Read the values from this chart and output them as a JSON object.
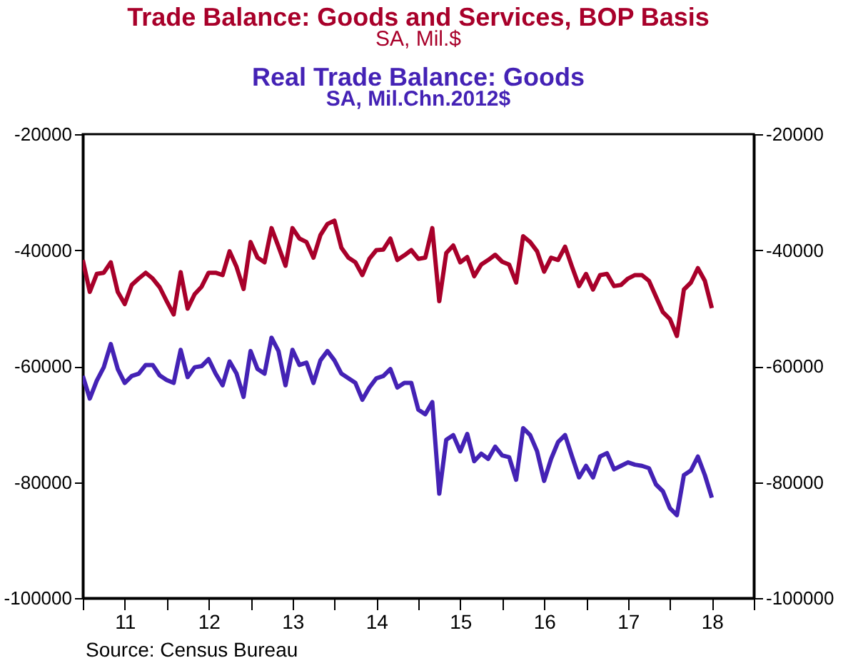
{
  "chart_data": {
    "type": "line",
    "x": [
      "2011-01",
      "2011-02",
      "2011-03",
      "2011-04",
      "2011-05",
      "2011-06",
      "2011-07",
      "2011-08",
      "2011-09",
      "2011-10",
      "2011-11",
      "2011-12",
      "2012-01",
      "2012-02",
      "2012-03",
      "2012-04",
      "2012-05",
      "2012-06",
      "2012-07",
      "2012-08",
      "2012-09",
      "2012-10",
      "2012-11",
      "2012-12",
      "2013-01",
      "2013-02",
      "2013-03",
      "2013-04",
      "2013-05",
      "2013-06",
      "2013-07",
      "2013-08",
      "2013-09",
      "2013-10",
      "2013-11",
      "2013-12",
      "2014-01",
      "2014-02",
      "2014-03",
      "2014-04",
      "2014-05",
      "2014-06",
      "2014-07",
      "2014-08",
      "2014-09",
      "2014-10",
      "2014-11",
      "2014-12",
      "2015-01",
      "2015-02",
      "2015-03",
      "2015-04",
      "2015-05",
      "2015-06",
      "2015-07",
      "2015-08",
      "2015-09",
      "2015-10",
      "2015-11",
      "2015-12",
      "2016-01",
      "2016-02",
      "2016-03",
      "2016-04",
      "2016-05",
      "2016-06",
      "2016-07",
      "2016-08",
      "2016-09",
      "2016-10",
      "2016-11",
      "2016-12",
      "2017-01",
      "2017-02",
      "2017-03",
      "2017-04",
      "2017-05",
      "2017-06",
      "2017-07",
      "2017-08",
      "2017-09",
      "2017-10",
      "2017-11",
      "2017-12",
      "2018-01",
      "2018-02",
      "2018-03",
      "2018-04",
      "2018-05",
      "2018-06",
      "2018-07"
    ],
    "series": [
      {
        "name": "Trade Balance:  Goods and Services, BOP Basis",
        "color": "#a8002a",
        "values": [
          -41700,
          -47200,
          -44100,
          -43900,
          -42100,
          -47200,
          -49300,
          -46000,
          -44900,
          -43900,
          -44900,
          -46400,
          -48800,
          -51100,
          -43800,
          -50100,
          -47600,
          -46300,
          -43900,
          -43900,
          -44300,
          -40200,
          -42900,
          -46700,
          -38600,
          -41300,
          -42100,
          -36200,
          -39400,
          -42700,
          -36200,
          -38000,
          -38600,
          -41300,
          -37400,
          -35500,
          -34900,
          -39600,
          -41300,
          -42100,
          -44300,
          -41500,
          -40000,
          -39900,
          -38000,
          -41700,
          -40900,
          -40000,
          -41500,
          -41300,
          -36200,
          -48800,
          -40500,
          -39200,
          -42100,
          -41200,
          -44500,
          -42500,
          -41700,
          -40800,
          -42000,
          -42500,
          -45600,
          -37600,
          -38600,
          -40200,
          -43700,
          -41300,
          -41700,
          -39400,
          -42900,
          -46200,
          -44100,
          -46800,
          -44300,
          -44100,
          -46200,
          -46000,
          -44900,
          -44300,
          -44300,
          -45300,
          -48000,
          -50700,
          -51900,
          -54800,
          -46800,
          -45600,
          -43100,
          -45300,
          -50000
        ]
      },
      {
        "name": "Real Trade Balance: Goods",
        "color": "#4422b5",
        "values": [
          -61700,
          -65600,
          -62500,
          -60200,
          -56200,
          -60500,
          -62900,
          -61700,
          -61300,
          -59800,
          -59800,
          -61600,
          -62400,
          -62900,
          -57200,
          -61900,
          -60200,
          -60000,
          -58800,
          -61300,
          -63300,
          -59200,
          -61300,
          -65300,
          -57400,
          -60500,
          -61300,
          -55100,
          -57400,
          -63300,
          -57200,
          -59800,
          -59400,
          -62900,
          -59000,
          -57400,
          -59000,
          -61300,
          -62100,
          -62900,
          -65800,
          -63700,
          -62100,
          -61700,
          -60500,
          -63700,
          -62900,
          -62900,
          -67500,
          -68300,
          -66200,
          -82000,
          -72700,
          -71900,
          -74700,
          -71700,
          -76400,
          -75100,
          -76000,
          -73900,
          -75400,
          -75700,
          -79600,
          -70700,
          -71900,
          -74700,
          -79800,
          -76000,
          -73100,
          -71900,
          -75600,
          -79200,
          -77200,
          -79200,
          -75600,
          -75000,
          -77800,
          -77200,
          -76600,
          -77000,
          -77200,
          -77600,
          -80400,
          -81600,
          -84500,
          -85700,
          -78800,
          -78000,
          -75600,
          -78800,
          -82700
        ]
      }
    ],
    "annotations": [
      "SA, Mil.$",
      "SA, Mil.Chn.2012$",
      "Source:  Census Bureau"
    ],
    "xlim": [
      "2011-01",
      "2019-01"
    ],
    "xticks": [
      {
        "value": "2011-01",
        "label": null
      },
      {
        "value": "2011-07",
        "label": "11"
      },
      {
        "value": "2012-01",
        "label": null
      },
      {
        "value": "2012-07",
        "label": "12"
      },
      {
        "value": "2013-01",
        "label": null
      },
      {
        "value": "2013-07",
        "label": "13"
      },
      {
        "value": "2014-01",
        "label": null
      },
      {
        "value": "2014-07",
        "label": "14"
      },
      {
        "value": "2015-01",
        "label": null
      },
      {
        "value": "2015-07",
        "label": "15"
      },
      {
        "value": "2016-01",
        "label": null
      },
      {
        "value": "2016-07",
        "label": "16"
      },
      {
        "value": "2017-01",
        "label": null
      },
      {
        "value": "2017-07",
        "label": "17"
      },
      {
        "value": "2018-01",
        "label": null
      },
      {
        "value": "2018-07",
        "label": "18"
      },
      {
        "value": "2019-01",
        "label": null
      }
    ],
    "ylim": [
      -100000,
      -20000
    ],
    "yticks": [
      {
        "value": -100000,
        "label": "-100000"
      },
      {
        "value": -80000,
        "label": "-80000"
      },
      {
        "value": -60000,
        "label": "-60000"
      },
      {
        "value": -40000,
        "label": "-40000"
      },
      {
        "value": -20000,
        "label": "-20000"
      }
    ],
    "y2lim": [
      -100000,
      -20000
    ],
    "y2ticks": [
      {
        "value": -100000,
        "label": "-100000"
      },
      {
        "value": -80000,
        "label": "-80000"
      },
      {
        "value": -60000,
        "label": "-60000"
      },
      {
        "value": -40000,
        "label": "-40000"
      },
      {
        "value": -20000,
        "label": "-20000"
      }
    ],
    "grid": false,
    "marker": "none",
    "line_style": "solid"
  }
}
